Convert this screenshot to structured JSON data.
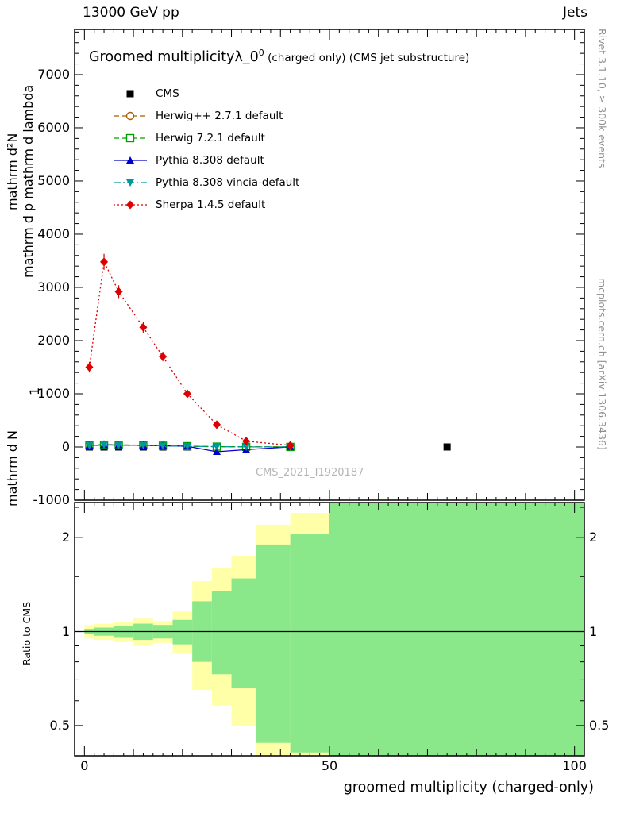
{
  "header": {
    "left": "13000 GeV pp",
    "right": "Jets"
  },
  "title": {
    "main": "Groomed multiplicityλ_0",
    "sup": "0",
    "rest": " (charged only) (CMS jet substructure)"
  },
  "watermark": "CMS_2021_I1920187",
  "notes": {
    "rivet": "Rivet 3.1.10, ≥ 300k events",
    "mcplots": "mcplots.cern.ch [arXiv:1306.3436]"
  },
  "yaxis_title_lines": [
    "mathrm d²N",
    "mathrm d p mathrm d lambda",
    "1",
    "mathrm d N"
  ],
  "xaxis": {
    "title": "groomed multiplicity (charged-only)"
  },
  "chart_data": {
    "type": "line",
    "title": "Groomed multiplicity λ_0^0 (charged only) (CMS jet substructure)",
    "xlabel": "groomed multiplicity (charged-only)",
    "ylabel": "mathrm d²N / mathrm d p mathrm d lambda (1/N dN, mangled LaTeX axis title)",
    "xlim": [
      -2,
      102
    ],
    "ylim": [
      -1000,
      7850
    ],
    "x_ticks_major": [
      0,
      50,
      100
    ],
    "x_tick_labels": [
      "0",
      "50",
      "100"
    ],
    "y_tick_values": [
      7000,
      6000,
      5000,
      4000,
      3000,
      2000,
      1000,
      0,
      -1000
    ],
    "y_tick_labels": [
      "7000",
      "6000",
      "5000",
      "4000",
      "3000",
      "2000",
      "1000",
      "0",
      "-1000"
    ],
    "grid": false,
    "legend_position": "top-left",
    "series": [
      {
        "name": "CMS",
        "color": "#000000",
        "line": "none",
        "marker": "square-filled",
        "x": [
          1,
          4,
          7,
          12,
          16,
          21,
          27,
          33,
          42,
          74
        ],
        "y": [
          0,
          0,
          0,
          0,
          0,
          0,
          0,
          0,
          0,
          0
        ]
      },
      {
        "name": "Herwig++ 2.7.1 default",
        "color": "#aa5c00",
        "line": "dashed",
        "marker": "circle-open",
        "x": [
          1,
          4,
          7,
          12,
          16,
          21,
          27,
          33,
          42
        ],
        "y": [
          30,
          45,
          40,
          33,
          26,
          16,
          7,
          3,
          1
        ]
      },
      {
        "name": "Herwig 7.2.1 default",
        "color": "#00a000",
        "line": "dashed",
        "marker": "square-open",
        "x": [
          1,
          4,
          7,
          12,
          16,
          21,
          27,
          33,
          42
        ],
        "y": [
          28,
          42,
          38,
          31,
          24,
          15,
          6,
          2,
          1
        ]
      },
      {
        "name": "Pythia 8.308 default",
        "color": "#0000cc",
        "line": "solid",
        "marker": "triangle-up",
        "x": [
          1,
          4,
          7,
          12,
          16,
          21,
          27,
          33,
          42
        ],
        "y": [
          25,
          40,
          36,
          30,
          22,
          13,
          -90,
          -50,
          2
        ]
      },
      {
        "name": "Pythia 8.308 vincia-default",
        "color": "#009999",
        "line": "dashdot",
        "marker": "triangle-down",
        "x": [
          1,
          4,
          7,
          12,
          16,
          21,
          27,
          33,
          42
        ],
        "y": [
          27,
          41,
          37,
          30,
          23,
          14,
          5,
          2,
          1
        ]
      },
      {
        "name": "Sherpa 1.4.5 default",
        "color": "#dd0000",
        "line": "dotted",
        "marker": "diamond",
        "x": [
          1,
          4,
          7,
          12,
          16,
          21,
          27,
          33,
          42
        ],
        "y": [
          1500,
          3480,
          2920,
          2250,
          1700,
          1000,
          420,
          110,
          30
        ],
        "yerr": [
          100,
          150,
          120,
          100,
          90,
          70,
          50,
          40,
          25
        ]
      }
    ],
    "ratio": {
      "ylabel": "Ratio to CMS",
      "scale": "log",
      "ylim": [
        0.4,
        2.59
      ],
      "ref_line": 1,
      "major_ticks": [
        {
          "v": 2,
          "label": "2"
        },
        {
          "v": 1,
          "label": "1"
        },
        {
          "v": 0.5,
          "label": "0.5"
        }
      ],
      "tick_values": [
        0.5,
        0.6,
        0.7,
        0.8,
        0.9,
        1,
        1.5,
        2,
        2.5
      ],
      "major_tick_values": [
        0.5,
        1,
        2
      ],
      "band_colors": {
        "outer": "#ffffa8",
        "inner": "#8ae88a"
      },
      "bands": [
        {
          "x0": 0,
          "x1": 2,
          "green": [
            0.98,
            1.02
          ],
          "yellow": [
            0.95,
            1.05
          ]
        },
        {
          "x0": 2,
          "x1": 6,
          "green": [
            0.97,
            1.03
          ],
          "yellow": [
            0.94,
            1.06
          ]
        },
        {
          "x0": 6,
          "x1": 10,
          "green": [
            0.96,
            1.04
          ],
          "yellow": [
            0.93,
            1.07
          ]
        },
        {
          "x0": 10,
          "x1": 14,
          "green": [
            0.94,
            1.06
          ],
          "yellow": [
            0.9,
            1.1
          ]
        },
        {
          "x0": 14,
          "x1": 18,
          "green": [
            0.95,
            1.05
          ],
          "yellow": [
            0.92,
            1.08
          ]
        },
        {
          "x0": 18,
          "x1": 22,
          "green": [
            0.91,
            1.09
          ],
          "yellow": [
            0.85,
            1.16
          ]
        },
        {
          "x0": 22,
          "x1": 26,
          "green": [
            0.8,
            1.25
          ],
          "yellow": [
            0.65,
            1.45
          ]
        },
        {
          "x0": 26,
          "x1": 30,
          "green": [
            0.73,
            1.35
          ],
          "yellow": [
            0.58,
            1.6
          ]
        },
        {
          "x0": 30,
          "x1": 35,
          "green": [
            0.66,
            1.48
          ],
          "yellow": [
            0.5,
            1.75
          ]
        },
        {
          "x0": 35,
          "x1": 42,
          "green": [
            0.44,
            1.9
          ],
          "yellow": [
            0.4,
            2.2
          ]
        },
        {
          "x0": 42,
          "x1": 50,
          "green": [
            0.41,
            2.05
          ],
          "yellow": [
            0.4,
            2.4
          ]
        },
        {
          "x0": 50,
          "x1": 102,
          "green": [
            0.4,
            2.59
          ],
          "yellow": [
            0.4,
            2.59
          ]
        }
      ]
    }
  }
}
